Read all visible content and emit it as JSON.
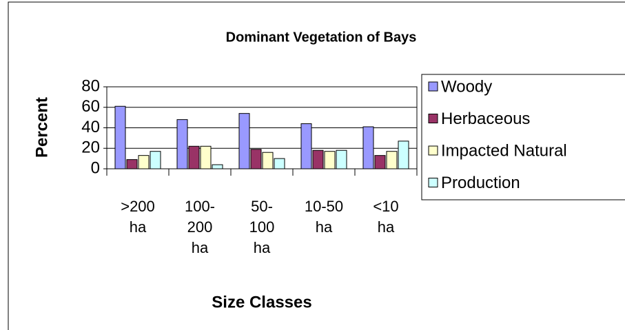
{
  "chart_data": {
    "type": "bar",
    "title": "Dominant Vegetation of Bays",
    "xlabel": "Size Classes",
    "ylabel": "Percent",
    "categories": [
      ">200 ha",
      "100-200 ha",
      "50-100 ha",
      "10-50 ha",
      "<10 ha"
    ],
    "series": [
      {
        "name": "Woody",
        "color": "#9999ff",
        "values": [
          61,
          48,
          54,
          44,
          41
        ]
      },
      {
        "name": "Herbaceous",
        "color": "#993366",
        "values": [
          9,
          22,
          19,
          18,
          13
        ]
      },
      {
        "name": "Impacted Natural",
        "color": "#ffffcc",
        "values": [
          13,
          22,
          16,
          17,
          17
        ]
      },
      {
        "name": "Production",
        "color": "#ccffff",
        "values": [
          17,
          4,
          10,
          18,
          27
        ]
      }
    ],
    "ylim": [
      0,
      80
    ],
    "yticks": [
      0,
      20,
      40,
      60,
      80
    ],
    "grid": true,
    "legend": "right"
  }
}
